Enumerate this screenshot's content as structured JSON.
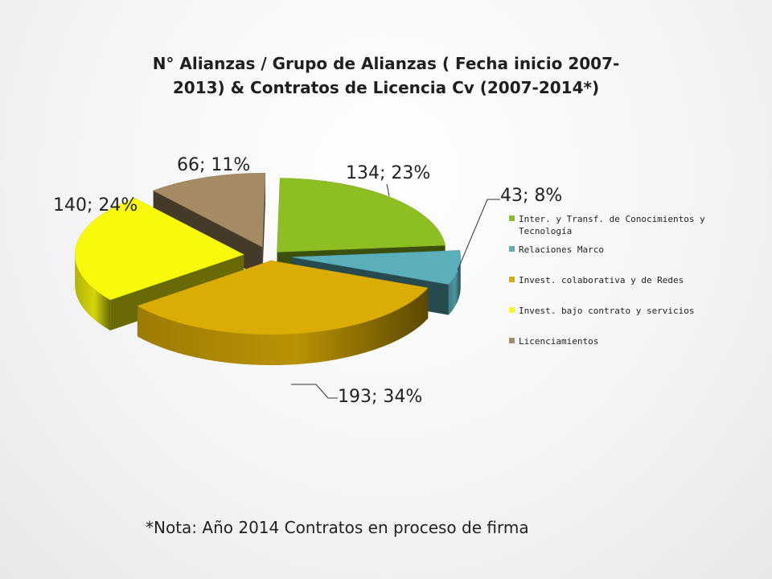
{
  "chart_data": {
    "type": "pie",
    "style": "3d-exploded",
    "title_line1": "N° Alianzas / Grupo de Alianzas ( Fecha inicio 2007-",
    "title_line2": "2013) & Contratos de Licencia Cv (2007-2014*)",
    "legend_position": "right",
    "slices": [
      {
        "name": "Inter. y Transf. de Conocimientos y Tecnología",
        "legend_lines": [
          "Inter. y Transf. de Conocimientos y",
          "Tecnología"
        ],
        "value": 134,
        "percent": 23,
        "label": "134; 23%",
        "color": "#8DBE22"
      },
      {
        "name": "Relaciones Marco",
        "legend_lines": [
          "Relaciones Marco"
        ],
        "value": 43,
        "percent": 8,
        "label": "43; 8%",
        "color": "#5BAFBA"
      },
      {
        "name": "Invest. colaborativa y de Redes",
        "legend_lines": [
          "Invest. colaborativa y de Redes"
        ],
        "value": 193,
        "percent": 34,
        "label": "193; 34%",
        "color": "#DAAC04"
      },
      {
        "name": "Invest. bajo contrato y servicios",
        "legend_lines": [
          "Invest. bajo contrato y servicios"
        ],
        "value": 140,
        "percent": 24,
        "label": "140; 24%",
        "color": "#F9F90B"
      },
      {
        "name": "Licenciamientos",
        "legend_lines": [
          "Licenciamientos"
        ],
        "value": 66,
        "percent": 11,
        "label": "66; 11%",
        "color": "#A58B63"
      }
    ]
  },
  "footnote": "*Nota: Año 2014 Contratos en proceso de firma"
}
